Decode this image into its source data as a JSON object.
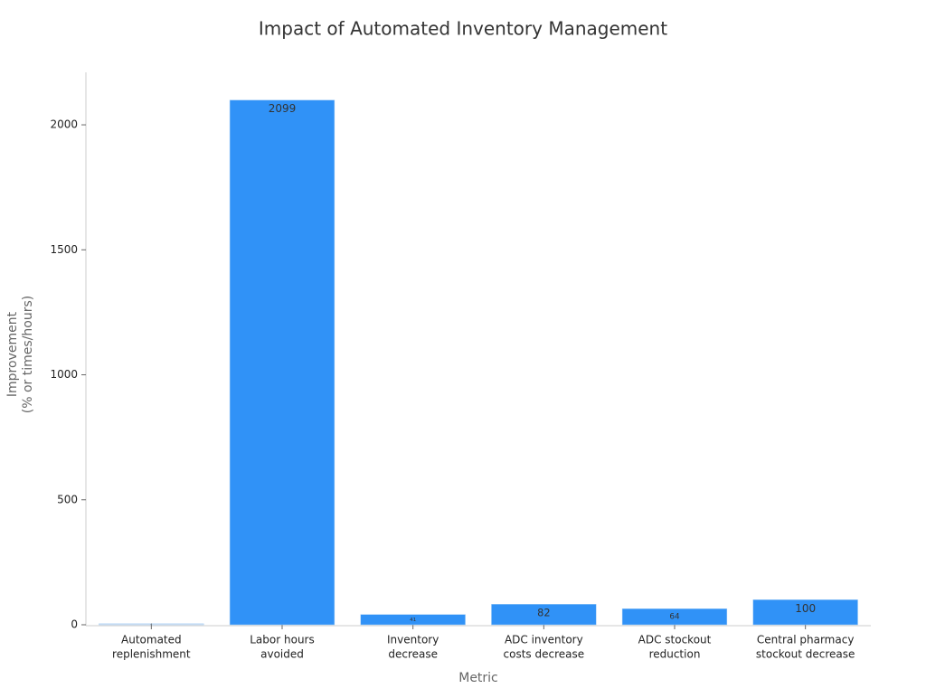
{
  "chart_data": {
    "type": "bar",
    "title": "Impact of Automated Inventory Management",
    "xlabel": "Metric",
    "ylabel": [
      "Improvement",
      "(% or times/hours)"
    ],
    "categories": [
      [
        "Automated",
        "replenishment"
      ],
      [
        "Labor hours",
        "avoided"
      ],
      [
        "Inventory",
        "decrease"
      ],
      [
        "ADC inventory",
        "costs decrease"
      ],
      [
        "ADC stockout",
        "reduction"
      ],
      [
        "Central pharmacy",
        "stockout decrease"
      ]
    ],
    "values": [
      4,
      2099,
      41,
      82,
      64,
      100
    ],
    "colors": [
      "#dde6f0",
      "#3092f7",
      "#3092f7",
      "#3092f7",
      "#3092f7",
      "#3092f7"
    ],
    "ylim": [
      0,
      2210
    ],
    "yticks": [
      0,
      500,
      1000,
      1500,
      2000
    ]
  }
}
